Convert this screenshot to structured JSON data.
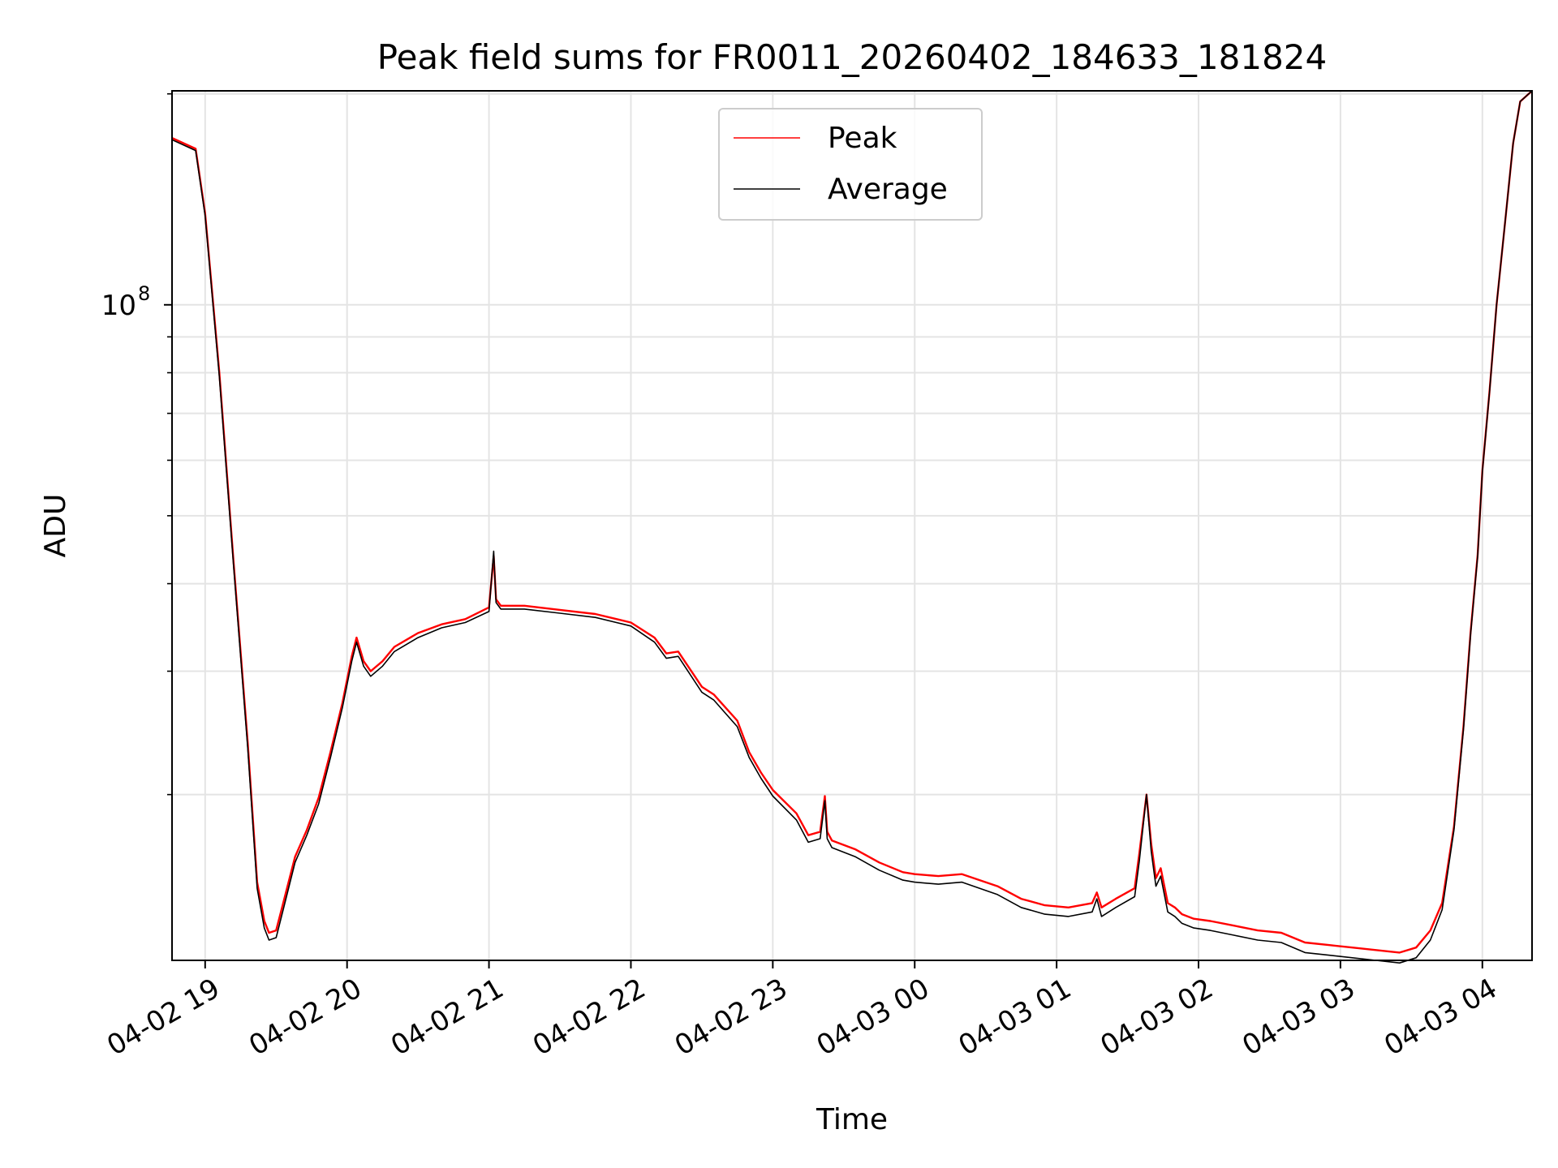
{
  "chart_data": {
    "type": "line",
    "title": "Peak field sums for FR0011_20260402_184633_181824",
    "xlabel": "Time",
    "ylabel": "ADU",
    "yscale": "log",
    "ylim": [
      11600000,
      202000000
    ],
    "xlim": [
      "2026-04-02 18:46",
      "2026-04-03 04:21"
    ],
    "grid": true,
    "legend_position": "top-center",
    "x_ticks": [
      {
        "value": "2026-04-02 19:00",
        "label": "04-02 19"
      },
      {
        "value": "2026-04-02 20:00",
        "label": "04-02 20"
      },
      {
        "value": "2026-04-02 21:00",
        "label": "04-02 21"
      },
      {
        "value": "2026-04-02 22:00",
        "label": "04-02 22"
      },
      {
        "value": "2026-04-02 23:00",
        "label": "04-02 23"
      },
      {
        "value": "2026-04-03 00:00",
        "label": "04-03 00"
      },
      {
        "value": "2026-04-03 01:00",
        "label": "04-03 01"
      },
      {
        "value": "2026-04-03 02:00",
        "label": "04-03 02"
      },
      {
        "value": "2026-04-03 03:00",
        "label": "04-03 03"
      },
      {
        "value": "2026-04-03 04:00",
        "label": "04-03 04"
      }
    ],
    "y_major_ticks": [
      {
        "value": 100000000,
        "label": "10",
        "exponent": "8"
      }
    ],
    "y_minor_ticks": [
      20000000,
      30000000,
      40000000,
      50000000,
      60000000,
      70000000,
      80000000,
      90000000,
      200000000
    ],
    "x": [
      "2026-04-02 18:46",
      "2026-04-02 18:56",
      "2026-04-02 19:00",
      "2026-04-02 19:06",
      "2026-04-02 19:12",
      "2026-04-02 19:18",
      "2026-04-02 19:22",
      "2026-04-02 19:25",
      "2026-04-02 19:27",
      "2026-04-02 19:30",
      "2026-04-02 19:33",
      "2026-04-02 19:38",
      "2026-04-02 19:43",
      "2026-04-02 19:48",
      "2026-04-02 19:53",
      "2026-04-02 19:58",
      "2026-04-02 20:02",
      "2026-04-02 20:04",
      "2026-04-02 20:07",
      "2026-04-02 20:10",
      "2026-04-02 20:15",
      "2026-04-02 20:20",
      "2026-04-02 20:30",
      "2026-04-02 20:40",
      "2026-04-02 20:50",
      "2026-04-02 21:00",
      "2026-04-02 21:02",
      "2026-04-02 21:03",
      "2026-04-02 21:05",
      "2026-04-02 21:15",
      "2026-04-02 21:30",
      "2026-04-02 21:45",
      "2026-04-02 22:00",
      "2026-04-02 22:10",
      "2026-04-02 22:15",
      "2026-04-02 22:20",
      "2026-04-02 22:30",
      "2026-04-02 22:35",
      "2026-04-02 22:45",
      "2026-04-02 22:50",
      "2026-04-02 22:55",
      "2026-04-02 23:00",
      "2026-04-02 23:10",
      "2026-04-02 23:15",
      "2026-04-02 23:20",
      "2026-04-02 23:22",
      "2026-04-02 23:23",
      "2026-04-02 23:25",
      "2026-04-02 23:35",
      "2026-04-02 23:45",
      "2026-04-02 23:55",
      "2026-04-03 00:00",
      "2026-04-03 00:10",
      "2026-04-03 00:20",
      "2026-04-03 00:35",
      "2026-04-03 00:45",
      "2026-04-03 00:55",
      "2026-04-03 01:05",
      "2026-04-03 01:15",
      "2026-04-03 01:17",
      "2026-04-03 01:19",
      "2026-04-03 01:25",
      "2026-04-03 01:33",
      "2026-04-03 01:35",
      "2026-04-03 01:38",
      "2026-04-03 01:40",
      "2026-04-03 01:42",
      "2026-04-03 01:44",
      "2026-04-03 01:47",
      "2026-04-03 01:50",
      "2026-04-03 01:53",
      "2026-04-03 01:58",
      "2026-04-03 02:05",
      "2026-04-03 02:15",
      "2026-04-03 02:25",
      "2026-04-03 02:35",
      "2026-04-03 02:45",
      "2026-04-03 02:55",
      "2026-04-03 03:05",
      "2026-04-03 03:15",
      "2026-04-03 03:25",
      "2026-04-03 03:32",
      "2026-04-03 03:38",
      "2026-04-03 03:43",
      "2026-04-03 03:48",
      "2026-04-03 03:52",
      "2026-04-03 03:55",
      "2026-04-03 03:58",
      "2026-04-03 04:00",
      "2026-04-03 04:03",
      "2026-04-03 04:06",
      "2026-04-03 04:10",
      "2026-04-03 04:13",
      "2026-04-03 04:16",
      "2026-04-03 04:21"
    ],
    "series": [
      {
        "name": "Peak",
        "color": "#ff0000",
        "values": [
          173000000,
          167000000,
          135000000,
          80000000,
          43000000,
          23700000,
          15000000,
          13200000,
          12700000,
          12800000,
          14000000,
          16300000,
          17800000,
          19800000,
          23000000,
          27000000,
          31500000,
          33500000,
          31000000,
          30000000,
          31000000,
          32500000,
          34000000,
          35000000,
          35600000,
          37000000,
          43800000,
          38000000,
          37200000,
          37200000,
          36700000,
          36200000,
          35200000,
          33500000,
          31800000,
          32000000,
          28500000,
          27800000,
          25500000,
          23000000,
          21500000,
          20300000,
          18800000,
          17500000,
          17700000,
          19900000,
          17700000,
          17200000,
          16700000,
          16000000,
          15500000,
          15400000,
          15300000,
          15400000,
          14800000,
          14200000,
          13900000,
          13800000,
          14000000,
          14500000,
          13800000,
          14200000,
          14700000,
          16500000,
          20000000,
          17000000,
          15200000,
          15700000,
          14000000,
          13800000,
          13500000,
          13300000,
          13200000,
          13000000,
          12800000,
          12700000,
          12300000,
          12200000,
          12100000,
          12000000,
          11900000,
          12100000,
          12800000,
          14000000,
          18000000,
          25000000,
          34000000,
          44000000,
          58000000,
          75000000,
          100000000,
          135000000,
          170000000,
          195000000,
          202000000
        ]
      },
      {
        "name": "Average",
        "color": "#000000",
        "values": [
          172000000,
          166000000,
          134000000,
          79000000,
          42500000,
          23300000,
          14700000,
          12900000,
          12400000,
          12500000,
          13700000,
          16000000,
          17500000,
          19400000,
          22600000,
          26600000,
          31000000,
          33000000,
          30500000,
          29500000,
          30500000,
          32000000,
          33500000,
          34600000,
          35200000,
          36500000,
          44500000,
          37600000,
          36800000,
          36800000,
          36300000,
          35800000,
          34800000,
          33000000,
          31300000,
          31500000,
          28000000,
          27300000,
          25000000,
          22600000,
          21100000,
          19900000,
          18400000,
          17100000,
          17300000,
          19600000,
          17300000,
          16800000,
          16300000,
          15600000,
          15100000,
          15000000,
          14900000,
          15000000,
          14400000,
          13800000,
          13500000,
          13400000,
          13600000,
          14200000,
          13400000,
          13800000,
          14300000,
          16100000,
          20000000,
          16600000,
          14800000,
          15300000,
          13600000,
          13400000,
          13100000,
          12900000,
          12800000,
          12600000,
          12400000,
          12300000,
          11900000,
          11800000,
          11700000,
          11600000,
          11500000,
          11700000,
          12400000,
          13700000,
          17800000,
          24800000,
          33800000,
          43800000,
          57800000,
          74800000,
          100000000,
          135000000,
          170000000,
          195000000,
          202000000
        ]
      }
    ]
  }
}
